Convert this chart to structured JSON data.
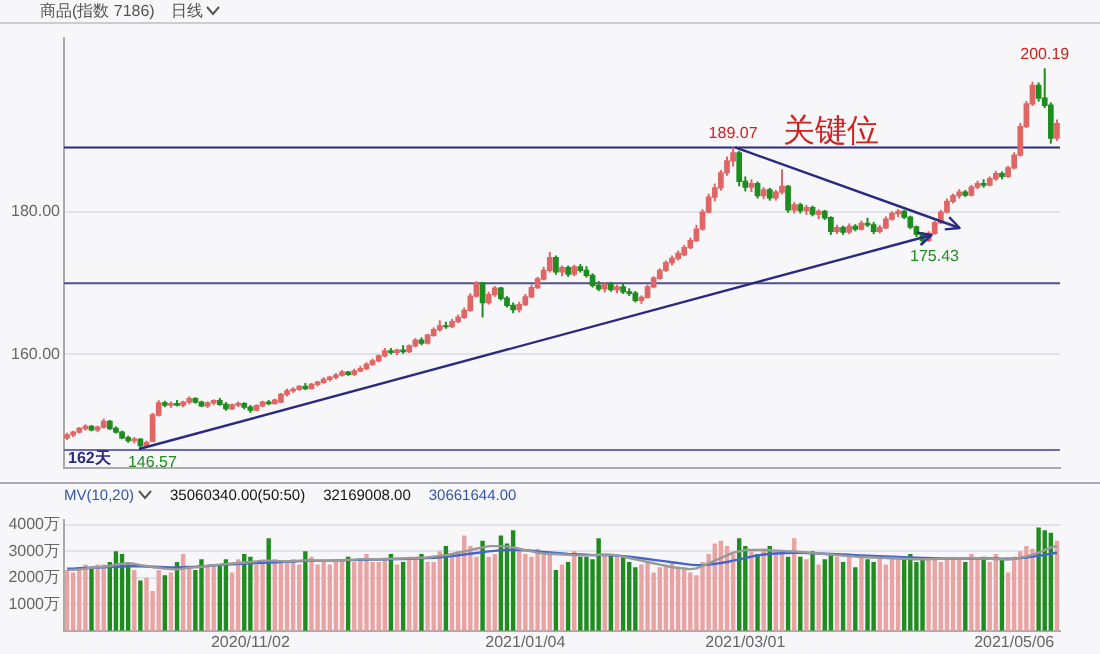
{
  "chart_data": [
    {
      "type": "candlestick",
      "title": "商品(指数 7186)",
      "subtitle": "日线",
      "categories": [
        null,
        null,
        null,
        null,
        null,
        null,
        null,
        null,
        null,
        null,
        null,
        null,
        null,
        null,
        null,
        null,
        null,
        null,
        null,
        null,
        null,
        null,
        null,
        null,
        null,
        null,
        null,
        null,
        null,
        null,
        "2020/11/02",
        null,
        null,
        null,
        null,
        null,
        null,
        null,
        null,
        null,
        null,
        null,
        null,
        null,
        null,
        null,
        null,
        null,
        null,
        null,
        null,
        null,
        null,
        null,
        null,
        null,
        null,
        null,
        null,
        null,
        null,
        null,
        null,
        null,
        null,
        null,
        null,
        null,
        null,
        null,
        null,
        null,
        null,
        null,
        null,
        "2021/01/04",
        null,
        null,
        null,
        null,
        null,
        null,
        null,
        null,
        null,
        null,
        null,
        null,
        null,
        null,
        null,
        null,
        null,
        null,
        null,
        null,
        null,
        null,
        null,
        null,
        null,
        null,
        null,
        null,
        null,
        null,
        null,
        null,
        null,
        null,
        null,
        "2021/03/01",
        null,
        null,
        null,
        null,
        null,
        null,
        null,
        null,
        null,
        null,
        null,
        null,
        null,
        null,
        null,
        null,
        null,
        null,
        null,
        null,
        null,
        null,
        null,
        null,
        null,
        null,
        null,
        null,
        null,
        null,
        null,
        null,
        null,
        null,
        null,
        null,
        null,
        null,
        null,
        null,
        null,
        null,
        null,
        "2021/05/06",
        null,
        null,
        null,
        null,
        null,
        null,
        null
      ],
      "ohlc": [
        [
          148.3,
          149.0,
          148.0,
          148.7
        ],
        [
          148.7,
          149.3,
          148.4,
          149.1
        ],
        [
          149.1,
          149.8,
          148.9,
          149.6
        ],
        [
          149.6,
          150.2,
          149.3,
          149.9
        ],
        [
          149.9,
          150.1,
          149.2,
          149.4
        ],
        [
          149.4,
          150.0,
          149.1,
          149.8
        ],
        [
          149.8,
          151.0,
          149.6,
          150.6
        ],
        [
          150.6,
          150.8,
          149.4,
          149.6
        ],
        [
          149.6,
          149.9,
          148.9,
          149.1
        ],
        [
          149.1,
          149.3,
          148.1,
          148.3
        ],
        [
          148.3,
          148.6,
          147.6,
          147.9
        ],
        [
          147.9,
          148.4,
          147.5,
          148.1
        ],
        [
          148.1,
          148.2,
          146.57,
          147.2
        ],
        [
          147.2,
          147.9,
          147.0,
          147.6
        ],
        [
          147.8,
          151.8,
          147.7,
          151.5
        ],
        [
          151.5,
          153.6,
          151.3,
          153.2
        ],
        [
          153.2,
          153.5,
          152.6,
          152.9
        ],
        [
          152.9,
          153.4,
          152.5,
          153.1
        ],
        [
          153.1,
          153.6,
          152.7,
          152.9
        ],
        [
          152.9,
          153.5,
          152.6,
          153.3
        ],
        [
          153.3,
          154.1,
          153.0,
          153.8
        ],
        [
          153.8,
          154.0,
          153.1,
          153.3
        ],
        [
          153.3,
          153.5,
          152.6,
          152.8
        ],
        [
          152.8,
          153.4,
          152.5,
          153.2
        ],
        [
          153.2,
          153.7,
          152.9,
          153.5
        ],
        [
          153.5,
          153.9,
          152.8,
          153.0
        ],
        [
          153.0,
          153.3,
          152.1,
          152.4
        ],
        [
          152.4,
          153.1,
          152.2,
          152.9
        ],
        [
          152.9,
          153.4,
          152.6,
          153.1
        ],
        [
          153.1,
          153.3,
          152.3,
          152.6
        ],
        [
          152.6,
          152.9,
          151.8,
          152.2
        ],
        [
          152.2,
          153.0,
          152.0,
          152.8
        ],
        [
          152.8,
          153.5,
          152.6,
          153.3
        ],
        [
          153.3,
          153.6,
          152.9,
          153.1
        ],
        [
          153.1,
          153.8,
          153.0,
          153.6
        ],
        [
          153.3,
          154.6,
          153.2,
          154.4
        ],
        [
          154.4,
          155.2,
          154.1,
          154.9
        ],
        [
          154.9,
          155.4,
          154.6,
          155.1
        ],
        [
          155.1,
          155.7,
          154.9,
          155.5
        ],
        [
          155.5,
          156.0,
          155.0,
          155.2
        ],
        [
          155.2,
          156.0,
          155.1,
          155.8
        ],
        [
          155.8,
          156.3,
          155.5,
          156.1
        ],
        [
          156.1,
          156.8,
          155.9,
          156.5
        ],
        [
          156.5,
          157.0,
          156.2,
          156.8
        ],
        [
          156.8,
          157.4,
          156.5,
          157.1
        ],
        [
          157.1,
          157.8,
          156.9,
          157.5
        ],
        [
          157.5,
          157.7,
          157.0,
          157.2
        ],
        [
          157.2,
          158.0,
          157.0,
          157.7
        ],
        [
          157.7,
          158.4,
          157.5,
          158.0
        ],
        [
          158.0,
          158.9,
          157.8,
          158.6
        ],
        [
          158.6,
          159.4,
          158.4,
          159.1
        ],
        [
          159.1,
          160.0,
          158.9,
          159.8
        ],
        [
          159.8,
          160.9,
          159.6,
          160.5
        ],
        [
          160.5,
          160.9,
          160.0,
          160.3
        ],
        [
          160.3,
          160.8,
          159.9,
          160.6
        ],
        [
          160.6,
          161.3,
          160.1,
          160.4
        ],
        [
          160.4,
          161.4,
          160.2,
          161.2
        ],
        [
          161.2,
          162.3,
          161.0,
          162.0
        ],
        [
          162.0,
          162.4,
          161.3,
          161.6
        ],
        [
          161.6,
          162.9,
          161.4,
          162.7
        ],
        [
          162.7,
          163.8,
          162.5,
          163.5
        ],
        [
          163.5,
          164.8,
          163.2,
          164.0
        ],
        [
          164.0,
          164.6,
          163.6,
          163.9
        ],
        [
          163.9,
          165.0,
          163.7,
          164.6
        ],
        [
          164.6,
          165.6,
          164.4,
          165.2
        ],
        [
          165.2,
          166.6,
          165.0,
          166.2
        ],
        [
          166.2,
          168.6,
          166.0,
          168.2
        ],
        [
          168.2,
          170.3,
          168.0,
          170.0
        ],
        [
          170.0,
          170.2,
          165.2,
          167.3
        ],
        [
          167.3,
          168.8,
          167.0,
          168.4
        ],
        [
          168.4,
          169.6,
          168.1,
          169.3
        ],
        [
          169.3,
          169.5,
          167.6,
          167.9
        ],
        [
          167.9,
          168.2,
          166.6,
          166.9
        ],
        [
          166.9,
          167.3,
          165.8,
          166.3
        ],
        [
          166.3,
          167.4,
          165.9,
          167.0
        ],
        [
          167.0,
          168.5,
          166.8,
          168.1
        ],
        [
          168.1,
          169.8,
          167.9,
          169.4
        ],
        [
          169.4,
          170.9,
          169.2,
          170.6
        ],
        [
          170.6,
          172.3,
          170.4,
          171.8
        ],
        [
          171.8,
          174.4,
          171.5,
          173.6
        ],
        [
          173.6,
          173.9,
          171.2,
          171.6
        ],
        [
          171.6,
          172.5,
          171.0,
          172.2
        ],
        [
          172.2,
          172.5,
          170.9,
          171.3
        ],
        [
          171.3,
          172.6,
          171.0,
          172.3
        ],
        [
          172.3,
          172.7,
          171.5,
          171.8
        ],
        [
          171.8,
          172.4,
          170.8,
          171.1
        ],
        [
          171.1,
          171.4,
          169.4,
          169.7
        ],
        [
          169.7,
          170.3,
          168.9,
          169.2
        ],
        [
          169.2,
          170.1,
          168.7,
          169.8
        ],
        [
          169.8,
          170.2,
          168.8,
          169.1
        ],
        [
          169.1,
          169.8,
          168.6,
          169.5
        ],
        [
          169.5,
          169.9,
          168.5,
          168.8
        ],
        [
          168.8,
          169.3,
          168.2,
          168.6
        ],
        [
          168.6,
          168.9,
          167.3,
          167.6
        ],
        [
          167.6,
          168.3,
          167.1,
          168.0
        ],
        [
          168.0,
          169.8,
          167.9,
          169.5
        ],
        [
          169.5,
          171.0,
          169.3,
          170.7
        ],
        [
          170.7,
          172.1,
          170.5,
          171.8
        ],
        [
          171.8,
          173.2,
          171.6,
          172.9
        ],
        [
          172.9,
          173.9,
          172.5,
          173.5
        ],
        [
          173.5,
          174.6,
          173.2,
          174.2
        ],
        [
          174.0,
          175.4,
          173.8,
          175.0
        ],
        [
          175.0,
          176.4,
          174.8,
          176.0
        ],
        [
          176.0,
          178.2,
          175.8,
          177.6
        ],
        [
          177.6,
          180.4,
          177.4,
          180.0
        ],
        [
          180.0,
          182.6,
          179.8,
          182.1
        ],
        [
          182.1,
          184.0,
          181.5,
          183.4
        ],
        [
          183.4,
          185.9,
          183.0,
          185.5
        ],
        [
          185.5,
          187.8,
          185.1,
          187.2
        ],
        [
          187.2,
          189.07,
          186.4,
          188.3
        ],
        [
          188.3,
          188.6,
          183.6,
          184.3
        ],
        [
          184.3,
          185.0,
          182.9,
          183.5
        ],
        [
          183.5,
          184.6,
          182.8,
          184.0
        ],
        [
          184.0,
          184.3,
          181.9,
          182.3
        ],
        [
          182.3,
          183.5,
          181.8,
          183.1
        ],
        [
          183.1,
          183.4,
          181.6,
          182.0
        ],
        [
          182.0,
          183.1,
          181.6,
          182.8
        ],
        [
          182.8,
          186.0,
          182.5,
          183.6
        ],
        [
          183.6,
          183.8,
          179.9,
          180.3
        ],
        [
          180.3,
          181.4,
          179.8,
          181.0
        ],
        [
          181.0,
          181.3,
          179.8,
          180.2
        ],
        [
          180.2,
          181.0,
          179.6,
          180.6
        ],
        [
          180.6,
          180.9,
          179.4,
          179.7
        ],
        [
          179.7,
          180.4,
          179.0,
          180.1
        ],
        [
          180.1,
          180.3,
          178.9,
          179.2
        ],
        [
          179.2,
          179.4,
          176.8,
          177.3
        ],
        [
          177.3,
          178.2,
          176.9,
          177.8
        ],
        [
          177.8,
          178.1,
          176.8,
          177.2
        ],
        [
          177.2,
          178.4,
          176.9,
          178.0
        ],
        [
          178.0,
          178.3,
          177.3,
          177.6
        ],
        [
          177.6,
          178.8,
          177.4,
          178.4
        ],
        [
          178.4,
          179.2,
          177.9,
          178.2
        ],
        [
          178.2,
          178.6,
          176.9,
          177.3
        ],
        [
          177.3,
          178.2,
          177.0,
          177.8
        ],
        [
          177.8,
          179.4,
          177.6,
          179.0
        ],
        [
          179.0,
          180.1,
          178.8,
          179.8
        ],
        [
          179.8,
          180.4,
          179.3,
          180.1
        ],
        [
          180.1,
          180.3,
          179.0,
          179.3
        ],
        [
          179.3,
          179.5,
          177.6,
          177.9
        ],
        [
          177.9,
          178.1,
          176.5,
          176.9
        ],
        [
          176.9,
          177.2,
          175.43,
          176.0
        ],
        [
          176.0,
          177.3,
          175.8,
          177.0
        ],
        [
          177.0,
          178.8,
          176.8,
          178.5
        ],
        [
          178.5,
          180.3,
          178.3,
          180.0
        ],
        [
          180.0,
          181.9,
          179.8,
          181.5
        ],
        [
          181.5,
          182.6,
          181.2,
          182.3
        ],
        [
          182.3,
          183.2,
          181.9,
          182.8
        ],
        [
          182.8,
          183.1,
          182.1,
          182.4
        ],
        [
          182.4,
          183.8,
          182.2,
          183.5
        ],
        [
          183.5,
          184.4,
          183.2,
          184.0
        ],
        [
          184.0,
          184.6,
          183.4,
          183.8
        ],
        [
          183.8,
          185.0,
          183.6,
          184.7
        ],
        [
          184.7,
          185.8,
          184.4,
          185.4
        ],
        [
          185.4,
          185.7,
          184.6,
          185.0
        ],
        [
          185.0,
          186.5,
          184.8,
          186.2
        ],
        [
          186.2,
          188.4,
          186.0,
          188.0
        ],
        [
          188.0,
          192.5,
          187.8,
          192.0
        ],
        [
          192.0,
          195.6,
          191.8,
          195.2
        ],
        [
          195.2,
          198.3,
          194.9,
          197.8
        ],
        [
          197.8,
          198.2,
          195.5,
          196.0
        ],
        [
          196.0,
          200.19,
          194.6,
          195.0
        ],
        [
          195.0,
          195.4,
          189.6,
          190.4
        ],
        [
          190.4,
          193.0,
          190.0,
          192.4
        ]
      ],
      "colors": [
        "#e06666",
        "#e06666",
        "#e06666",
        "#e06666",
        "#1e8c1e",
        "#e06666",
        "#e06666",
        "#1e8c1e",
        "#1e8c1e",
        "#1e8c1e",
        "#1e8c1e",
        "#e06666",
        "#1e8c1e",
        "#e06666",
        "#e06666",
        "#e06666",
        "#1e8c1e",
        "#e06666",
        "#1e8c1e",
        "#e06666",
        "#e06666",
        "#1e8c1e",
        "#1e8c1e",
        "#e06666",
        "#e06666",
        "#1e8c1e",
        "#1e8c1e",
        "#e06666",
        "#e06666",
        "#1e8c1e",
        "#1e8c1e",
        "#e06666",
        "#e06666",
        "#1e8c1e",
        "#e06666",
        "#e06666",
        "#e06666",
        "#e06666",
        "#e06666",
        "#1e8c1e",
        "#e06666",
        "#e06666",
        "#e06666",
        "#e06666",
        "#e06666",
        "#e06666",
        "#1e8c1e",
        "#e06666",
        "#e06666",
        "#e06666",
        "#e06666",
        "#e06666",
        "#e06666",
        "#1e8c1e",
        "#e06666",
        "#1e8c1e",
        "#e06666",
        "#e06666",
        "#1e8c1e",
        "#e06666",
        "#e06666",
        "#e06666",
        "#1e8c1e",
        "#e06666",
        "#e06666",
        "#e06666",
        "#e06666",
        "#e06666",
        "#1e8c1e",
        "#e06666",
        "#e06666",
        "#1e8c1e",
        "#1e8c1e",
        "#1e8c1e",
        "#e06666",
        "#e06666",
        "#e06666",
        "#e06666",
        "#e06666",
        "#e06666",
        "#1e8c1e",
        "#e06666",
        "#1e8c1e",
        "#e06666",
        "#1e8c1e",
        "#1e8c1e",
        "#1e8c1e",
        "#1e8c1e",
        "#e06666",
        "#1e8c1e",
        "#e06666",
        "#1e8c1e",
        "#1e8c1e",
        "#1e8c1e",
        "#e06666",
        "#e06666",
        "#e06666",
        "#e06666",
        "#e06666",
        "#e06666",
        "#e06666",
        "#e06666",
        "#e06666",
        "#e06666",
        "#e06666",
        "#e06666",
        "#e06666",
        "#e06666",
        "#e06666",
        "#e06666",
        "#1e8c1e",
        "#1e8c1e",
        "#e06666",
        "#1e8c1e",
        "#e06666",
        "#1e8c1e",
        "#e06666",
        "#e06666",
        "#1e8c1e",
        "#e06666",
        "#1e8c1e",
        "#e06666",
        "#1e8c1e",
        "#e06666",
        "#1e8c1e",
        "#1e8c1e",
        "#e06666",
        "#1e8c1e",
        "#e06666",
        "#1e8c1e",
        "#e06666",
        "#1e8c1e",
        "#1e8c1e",
        "#e06666",
        "#e06666",
        "#e06666",
        "#e06666",
        "#1e8c1e",
        "#1e8c1e",
        "#1e8c1e",
        "#1e8c1e",
        "#e06666",
        "#e06666",
        "#e06666",
        "#e06666",
        "#e06666",
        "#e06666",
        "#1e8c1e",
        "#e06666",
        "#e06666",
        "#1e8c1e",
        "#e06666",
        "#e06666",
        "#1e8c1e",
        "#e06666",
        "#e06666",
        "#e06666",
        "#e06666",
        "#e06666",
        "#1e8c1e",
        "#1e8c1e",
        "#1e8c1e",
        "#e06666"
      ],
      "ylim": [
        144,
        204.5
      ],
      "yticks": [
        {
          "value": 160,
          "label": "160.00"
        },
        {
          "value": 180,
          "label": "180.00"
        }
      ],
      "grid": "y",
      "tick_labels": "y",
      "marker": "none",
      "ref_lines": [
        {
          "axis": "y",
          "value": 189.07,
          "color": "#2a2a80"
        },
        {
          "axis": "y",
          "value": 170,
          "color": "#50508a"
        },
        {
          "axis": "y",
          "value": 146.57,
          "color": "#6a6ab0"
        }
      ],
      "annotations": [
        {
          "text": "189.07",
          "y": 189.07
        },
        {
          "text": "200.19",
          "y": 200.19
        },
        {
          "text": "175.43",
          "y": 175.43
        },
        {
          "text": "146.57",
          "y": 146.57
        },
        "162天",
        "关键位"
      ]
    },
    {
      "type": "bar",
      "categories": [
        null,
        null,
        null,
        null,
        null,
        null,
        null,
        null,
        null,
        null,
        null,
        null,
        null,
        null,
        null,
        null,
        null,
        null,
        null,
        null,
        null,
        null,
        null,
        null,
        null,
        null,
        null,
        null,
        null,
        null,
        "2020/11/02",
        null,
        null,
        null,
        null,
        null,
        null,
        null,
        null,
        null,
        null,
        null,
        null,
        null,
        null,
        null,
        null,
        null,
        null,
        null,
        null,
        null,
        null,
        null,
        null,
        null,
        null,
        null,
        null,
        null,
        null,
        null,
        null,
        null,
        null,
        null,
        null,
        null,
        null,
        null,
        null,
        null,
        null,
        null,
        null,
        "2021/01/04",
        null,
        null,
        null,
        null,
        null,
        null,
        null,
        null,
        null,
        null,
        null,
        null,
        null,
        null,
        null,
        null,
        null,
        null,
        null,
        null,
        null,
        null,
        null,
        null,
        null,
        null,
        null,
        null,
        null,
        null,
        null,
        null,
        null,
        null,
        null,
        "2021/03/01",
        null,
        null,
        null,
        null,
        null,
        null,
        null,
        null,
        null,
        null,
        null,
        null,
        null,
        null,
        null,
        null,
        null,
        null,
        null,
        null,
        null,
        null,
        null,
        null,
        null,
        null,
        null,
        null,
        null,
        null,
        null,
        null,
        null,
        null,
        null,
        null,
        null,
        null,
        null,
        null,
        null,
        null,
        null,
        "2021/05/06",
        null,
        null,
        null,
        null,
        null,
        null,
        null
      ],
      "series": [
        {
          "values": [
            2300,
            2200,
            2400,
            2500,
            2400,
            2500,
            2500,
            2600,
            3000,
            2900,
            2600,
            2300,
            1900,
            2000,
            1500,
            2300,
            2100,
            2200,
            2600,
            2900,
            2400,
            2300,
            2700,
            2500,
            2500,
            2500,
            2700,
            2200,
            2700,
            2900,
            2800,
            2500,
            2600,
            3500,
            2700,
            2600,
            2600,
            2700,
            2500,
            3000,
            2800,
            2500,
            2600,
            2500,
            2600,
            2700,
            2800,
            2600,
            2700,
            2900,
            2600,
            2600,
            2700,
            2900,
            2500,
            2600,
            2800,
            2700,
            2900,
            2600,
            2600,
            3000,
            3200,
            2800,
            3000,
            3600,
            3200,
            2800,
            3400,
            2800,
            2900,
            3600,
            3300,
            3800,
            3100,
            2900,
            2800,
            3100,
            3000,
            2900,
            2300,
            2500,
            2600,
            3000,
            2800,
            2800,
            2700,
            3500,
            2900,
            2900,
            2800,
            2800,
            2600,
            2400,
            2500,
            2600,
            2200,
            2400,
            2500,
            2600,
            2400,
            2400,
            2200,
            2100,
            2600,
            2900,
            3300,
            3400,
            3200,
            2900,
            3500,
            3200,
            3000,
            2900,
            3100,
            3200,
            3000,
            2900,
            2800,
            3500,
            2800,
            2700,
            3000,
            2500,
            2700,
            2900,
            2800,
            2600,
            2900,
            2400,
            2800,
            2700,
            2600,
            2800,
            2500,
            2800,
            2700,
            2700,
            2900,
            2600,
            2700,
            2800,
            2700,
            2600,
            2700,
            2800,
            2700,
            2600,
            2900,
            2700,
            2800,
            2600,
            2900,
            2700,
            2200,
            2800,
            3000,
            3200,
            3100,
            3900,
            3800,
            3700,
            3400
          ],
          "colors": [
            "#e9a3a3",
            "#e9a3a3",
            "#e9a3a3",
            "#e9a3a3",
            "#1e8c1e",
            "#e9a3a3",
            "#e9a3a3",
            "#1e8c1e",
            "#1e8c1e",
            "#1e8c1e",
            "#1e8c1e",
            "#e9a3a3",
            "#1e8c1e",
            "#e9a3a3",
            "#e9a3a3",
            "#e9a3a3",
            "#1e8c1e",
            "#e9a3a3",
            "#1e8c1e",
            "#e9a3a3",
            "#e9a3a3",
            "#1e8c1e",
            "#1e8c1e",
            "#e9a3a3",
            "#e9a3a3",
            "#1e8c1e",
            "#1e8c1e",
            "#e9a3a3",
            "#e9a3a3",
            "#1e8c1e",
            "#1e8c1e",
            "#e9a3a3",
            "#e9a3a3",
            "#1e8c1e",
            "#e9a3a3",
            "#e9a3a3",
            "#e9a3a3",
            "#e9a3a3",
            "#e9a3a3",
            "#1e8c1e",
            "#e9a3a3",
            "#e9a3a3",
            "#e9a3a3",
            "#e9a3a3",
            "#e9a3a3",
            "#e9a3a3",
            "#1e8c1e",
            "#e9a3a3",
            "#e9a3a3",
            "#e9a3a3",
            "#e9a3a3",
            "#e9a3a3",
            "#e9a3a3",
            "#1e8c1e",
            "#e9a3a3",
            "#1e8c1e",
            "#e9a3a3",
            "#e9a3a3",
            "#1e8c1e",
            "#e9a3a3",
            "#e9a3a3",
            "#e9a3a3",
            "#1e8c1e",
            "#e9a3a3",
            "#e9a3a3",
            "#e9a3a3",
            "#e9a3a3",
            "#e9a3a3",
            "#1e8c1e",
            "#e9a3a3",
            "#e9a3a3",
            "#1e8c1e",
            "#1e8c1e",
            "#1e8c1e",
            "#e9a3a3",
            "#e9a3a3",
            "#e9a3a3",
            "#e9a3a3",
            "#e9a3a3",
            "#e9a3a3",
            "#1e8c1e",
            "#e9a3a3",
            "#1e8c1e",
            "#e9a3a3",
            "#1e8c1e",
            "#1e8c1e",
            "#1e8c1e",
            "#1e8c1e",
            "#e9a3a3",
            "#1e8c1e",
            "#e9a3a3",
            "#1e8c1e",
            "#1e8c1e",
            "#1e8c1e",
            "#e9a3a3",
            "#e9a3a3",
            "#e9a3a3",
            "#e9a3a3",
            "#e9a3a3",
            "#e9a3a3",
            "#e9a3a3",
            "#e9a3a3",
            "#e9a3a3",
            "#e9a3a3",
            "#e9a3a3",
            "#e9a3a3",
            "#e9a3a3",
            "#e9a3a3",
            "#e9a3a3",
            "#e9a3a3",
            "#1e8c1e",
            "#1e8c1e",
            "#e9a3a3",
            "#1e8c1e",
            "#e9a3a3",
            "#1e8c1e",
            "#e9a3a3",
            "#e9a3a3",
            "#1e8c1e",
            "#e9a3a3",
            "#1e8c1e",
            "#e9a3a3",
            "#1e8c1e",
            "#e9a3a3",
            "#1e8c1e",
            "#1e8c1e",
            "#e9a3a3",
            "#1e8c1e",
            "#e9a3a3",
            "#1e8c1e",
            "#e9a3a3",
            "#1e8c1e",
            "#1e8c1e",
            "#e9a3a3",
            "#e9a3a3",
            "#e9a3a3",
            "#e9a3a3",
            "#1e8c1e",
            "#1e8c1e",
            "#1e8c1e",
            "#1e8c1e",
            "#e9a3a3",
            "#e9a3a3",
            "#e9a3a3",
            "#e9a3a3",
            "#e9a3a3",
            "#e9a3a3",
            "#1e8c1e",
            "#e9a3a3",
            "#e9a3a3",
            "#1e8c1e",
            "#e9a3a3",
            "#e9a3a3",
            "#1e8c1e",
            "#e9a3a3",
            "#e9a3a3",
            "#e9a3a3",
            "#e9a3a3",
            "#e9a3a3",
            "#1e8c1e",
            "#1e8c1e",
            "#1e8c1e",
            "#e9a3a3"
          ]
        },
        {
          "type": "line",
          "color": "#999999",
          "values": [
            2300,
            2300,
            2320,
            2350,
            2380,
            2400,
            2420,
            2450,
            2500,
            2530,
            2550,
            2530,
            2480,
            2450,
            2400,
            2380,
            2350,
            2330,
            2320,
            2350,
            2380,
            2400,
            2420,
            2450,
            2480,
            2500,
            2520,
            2540,
            2560,
            2580,
            2600,
            2620,
            2650,
            2650,
            2640,
            2630,
            2620,
            2640,
            2650,
            2660,
            2660,
            2650,
            2640,
            2650,
            2660,
            2670,
            2680,
            2690,
            2700,
            2700,
            2700,
            2700,
            2710,
            2720,
            2720,
            2730,
            2740,
            2750,
            2760,
            2770,
            2800,
            2830,
            2860,
            2900,
            2950,
            3000,
            3050,
            3100,
            3150,
            3200,
            3200,
            3200,
            3180,
            3150,
            3100,
            3050,
            3000,
            2950,
            2920,
            2900,
            2900,
            2880,
            2870,
            2860,
            2850,
            2850,
            2860,
            2870,
            2880,
            2870,
            2850,
            2800,
            2750,
            2700,
            2650,
            2600,
            2550,
            2500,
            2450,
            2400,
            2380,
            2350,
            2330,
            2360,
            2450,
            2550,
            2650,
            2750,
            2850,
            2950,
            3000,
            3050,
            3050,
            3050,
            3050,
            3040,
            3030,
            3020,
            3000,
            3000,
            2980,
            2960,
            2940,
            2920,
            2900,
            2880,
            2860,
            2840,
            2820,
            2800,
            2790,
            2780,
            2770,
            2760,
            2750,
            2740,
            2730,
            2720,
            2710,
            2700,
            2700,
            2700,
            2710,
            2720,
            2730,
            2740,
            2740,
            2740,
            2740,
            2740,
            2730,
            2720,
            2710,
            2700,
            2690,
            2720,
            2760,
            2810,
            2870,
            2950,
            3050,
            3150,
            3200
          ]
        },
        {
          "type": "line",
          "color": "#4466cc",
          "values": [
            2350,
            2350,
            2360,
            2370,
            2380,
            2390,
            2400,
            2410,
            2420,
            2430,
            2440,
            2440,
            2440,
            2430,
            2420,
            2410,
            2400,
            2390,
            2390,
            2400,
            2410,
            2420,
            2440,
            2450,
            2470,
            2480,
            2500,
            2510,
            2520,
            2540,
            2550,
            2560,
            2570,
            2580,
            2590,
            2600,
            2610,
            2620,
            2630,
            2640,
            2650,
            2650,
            2650,
            2650,
            2660,
            2660,
            2670,
            2670,
            2680,
            2680,
            2690,
            2690,
            2700,
            2700,
            2710,
            2710,
            2720,
            2730,
            2740,
            2750,
            2760,
            2780,
            2800,
            2820,
            2850,
            2880,
            2910,
            2940,
            2970,
            3000,
            3020,
            3040,
            3050,
            3050,
            3050,
            3040,
            3030,
            3000,
            2980,
            2960,
            2940,
            2920,
            2900,
            2890,
            2880,
            2870,
            2860,
            2860,
            2860,
            2850,
            2840,
            2820,
            2800,
            2770,
            2740,
            2710,
            2680,
            2650,
            2620,
            2590,
            2560,
            2530,
            2500,
            2480,
            2480,
            2500,
            2530,
            2560,
            2600,
            2650,
            2700,
            2750,
            2800,
            2850,
            2880,
            2900,
            2920,
            2930,
            2940,
            2950,
            2950,
            2940,
            2930,
            2920,
            2910,
            2900,
            2890,
            2880,
            2870,
            2860,
            2850,
            2840,
            2830,
            2820,
            2810,
            2800,
            2790,
            2780,
            2770,
            2760,
            2750,
            2740,
            2740,
            2730,
            2730,
            2730,
            2730,
            2730,
            2730,
            2730,
            2730,
            2730,
            2730,
            2720,
            2720,
            2730,
            2750,
            2770,
            2800,
            2830,
            2870,
            2910,
            2950
          ]
        }
      ],
      "ylim": [
        0,
        4200
      ],
      "yticks": [
        {
          "value": 1000,
          "label": "1000万"
        },
        {
          "value": 2000,
          "label": "2000万"
        },
        {
          "value": 3000,
          "label": "3000万"
        },
        {
          "value": 4000,
          "label": "4000万"
        }
      ],
      "grid": "y",
      "marker": "none",
      "annotations": [
        "MV(10,20)",
        "35060340.00(50:50)",
        "32169008.00",
        "30661644.00"
      ]
    }
  ]
}
